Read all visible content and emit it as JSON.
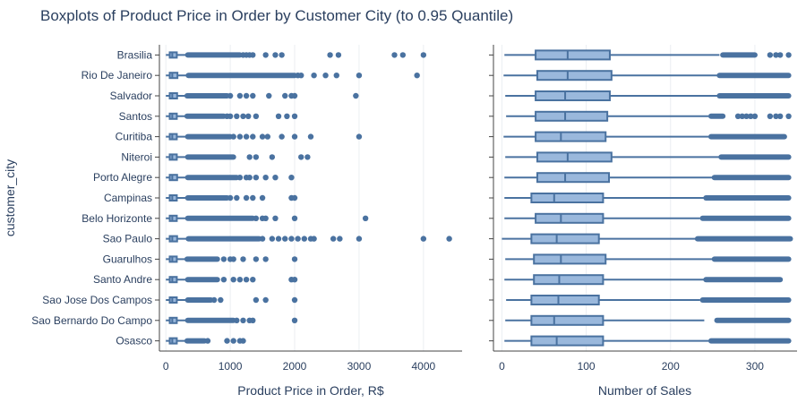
{
  "chart_data": {
    "type": "box",
    "title": "Boxplots of Product Price in Order by Customer City (to 0.95 Quantile)",
    "ylabel": "customer_city",
    "categories": [
      "Brasilia",
      "Rio De Janeiro",
      "Salvador",
      "Santos",
      "Curitiba",
      "Niteroi",
      "Porto Alegre",
      "Campinas",
      "Belo Horizonte",
      "Sao Paulo",
      "Guarulhos",
      "Santo Andre",
      "Sao Jose Dos Campos",
      "Sao Bernardo Do Campo",
      "Osasco"
    ],
    "colors": {
      "box_fill": "#9ab8dc",
      "box_line": "#4a72a0",
      "point": "#4a72a0",
      "grid": "#ebeef2"
    },
    "panels": [
      {
        "xlabel": "Product Price in Order, R$",
        "xlim": [
          -100,
          4600
        ],
        "xticks": [
          0,
          1000,
          2000,
          3000,
          4000
        ],
        "boxes": [
          {
            "q1": 60,
            "median": 100,
            "q3": 170,
            "lower": 0,
            "upper": 330,
            "outliers_dense": [
              340,
              1150
            ],
            "outliers": [
              1200,
              1250,
              1300,
              1350,
              1550,
              1700,
              1800,
              2550,
              2680,
              3550,
              3680,
              4000
            ]
          },
          {
            "q1": 60,
            "median": 100,
            "q3": 180,
            "lower": 0,
            "upper": 340,
            "outliers_dense": [
              350,
              2000
            ],
            "outliers": [
              2050,
              2100,
              2300,
              2480,
              2650,
              3000,
              3900
            ]
          },
          {
            "q1": 60,
            "median": 100,
            "q3": 175,
            "lower": 0,
            "upper": 320,
            "outliers_dense": [
              330,
              950
            ],
            "outliers": [
              1000,
              1150,
              1250,
              1350,
              1600,
              1850,
              1950,
              2000,
              2950
            ]
          },
          {
            "q1": 60,
            "median": 100,
            "q3": 170,
            "lower": 0,
            "upper": 320,
            "outliers_dense": [
              330,
              900
            ],
            "outliers": [
              950,
              1000,
              1100,
              1200,
              1280,
              1400,
              1750,
              1880,
              2000
            ]
          },
          {
            "q1": 60,
            "median": 100,
            "q3": 170,
            "lower": 0,
            "upper": 330,
            "outliers_dense": [
              340,
              1000
            ],
            "outliers": [
              1050,
              1150,
              1250,
              1350,
              1500,
              1580,
              1800,
              2000,
              2250,
              3000
            ]
          },
          {
            "q1": 60,
            "median": 100,
            "q3": 170,
            "lower": 0,
            "upper": 330,
            "outliers_dense": [
              340,
              1050
            ],
            "outliers": [
              1300,
              1400,
              1650,
              2100,
              2200
            ]
          },
          {
            "q1": 60,
            "median": 100,
            "q3": 175,
            "lower": 0,
            "upper": 330,
            "outliers_dense": [
              340,
              1100
            ],
            "outliers": [
              1150,
              1250,
              1300,
              1400,
              1550,
              1700,
              1950
            ]
          },
          {
            "q1": 60,
            "median": 100,
            "q3": 170,
            "lower": 0,
            "upper": 330,
            "outliers_dense": [
              340,
              950
            ],
            "outliers": [
              1000,
              1100,
              1250,
              1350,
              1500,
              1950,
              2000
            ]
          },
          {
            "q1": 60,
            "median": 100,
            "q3": 170,
            "lower": 0,
            "upper": 330,
            "outliers_dense": [
              340,
              1350
            ],
            "outliers": [
              1400,
              1500,
              1550,
              1700,
              2000,
              3100
            ]
          },
          {
            "q1": 60,
            "median": 100,
            "q3": 175,
            "lower": 0,
            "upper": 340,
            "outliers_dense": [
              350,
              1450
            ],
            "outliers": [
              1500,
              1650,
              1750,
              1850,
              1950,
              2050,
              2150,
              2250,
              2300,
              2600,
              2700,
              3000,
              4000,
              4400
            ]
          },
          {
            "q1": 60,
            "median": 100,
            "q3": 170,
            "lower": 0,
            "upper": 320,
            "outliers_dense": [
              330,
              800
            ],
            "outliers": [
              900,
              1000,
              1050,
              1200,
              1400,
              1550,
              2000
            ]
          },
          {
            "q1": 60,
            "median": 100,
            "q3": 170,
            "lower": 0,
            "upper": 330,
            "outliers_dense": [
              340,
              800
            ],
            "outliers": [
              900,
              1050,
              1150,
              1250,
              1350,
              1950,
              2000
            ]
          },
          {
            "q1": 60,
            "median": 100,
            "q3": 170,
            "lower": 0,
            "upper": 330,
            "outliers_dense": [
              340,
              700
            ],
            "outliers": [
              750,
              850,
              1400,
              1550,
              2000
            ]
          },
          {
            "q1": 60,
            "median": 100,
            "q3": 170,
            "lower": 0,
            "upper": 330,
            "outliers_dense": [
              340,
              1050
            ],
            "outliers": [
              1100,
              1200,
              1300,
              1350,
              2000
            ]
          },
          {
            "q1": 60,
            "median": 100,
            "q3": 170,
            "lower": 0,
            "upper": 320,
            "outliers_dense": [
              330,
              600
            ],
            "outliers": [
              650,
              950,
              1050,
              1150,
              1200
            ]
          }
        ]
      },
      {
        "xlabel": "Number of Sales",
        "xlim": [
          -10,
          350
        ],
        "xticks": [
          0,
          100,
          200,
          300
        ],
        "boxes": [
          {
            "q1": 40,
            "median": 78,
            "q3": 128,
            "lower": 3,
            "upper": 258,
            "outliers_dense": [
              262,
              300
            ],
            "outliers": [
              318,
              325,
              330,
              340
            ]
          },
          {
            "q1": 42,
            "median": 78,
            "q3": 130,
            "lower": 2,
            "upper": 255,
            "outliers_dense": [
              258,
              340
            ],
            "outliers": []
          },
          {
            "q1": 40,
            "median": 75,
            "q3": 128,
            "lower": 4,
            "upper": 255,
            "outliers_dense": [
              258,
              340
            ],
            "outliers": []
          },
          {
            "q1": 40,
            "median": 75,
            "q3": 125,
            "lower": 5,
            "upper": 245,
            "outliers_dense": [
              248,
              262
            ],
            "outliers": [
              280,
              285,
              290,
              295,
              300,
              318,
              325,
              330,
              340
            ]
          },
          {
            "q1": 40,
            "median": 70,
            "q3": 123,
            "lower": 2,
            "upper": 245,
            "outliers_dense": [
              248,
              335
            ],
            "outliers": []
          },
          {
            "q1": 42,
            "median": 78,
            "q3": 130,
            "lower": 4,
            "upper": 258,
            "outliers_dense": [
              260,
              340
            ],
            "outliers": []
          },
          {
            "q1": 42,
            "median": 75,
            "q3": 127,
            "lower": 3,
            "upper": 250,
            "outliers_dense": [
              252,
              340
            ],
            "outliers": []
          },
          {
            "q1": 35,
            "median": 62,
            "q3": 120,
            "lower": 3,
            "upper": 240,
            "outliers_dense": [
              242,
              340
            ],
            "outliers": []
          },
          {
            "q1": 40,
            "median": 70,
            "q3": 120,
            "lower": 3,
            "upper": 235,
            "outliers_dense": [
              238,
              340
            ],
            "outliers": []
          },
          {
            "q1": 35,
            "median": 65,
            "q3": 115,
            "lower": 0,
            "upper": 230,
            "outliers_dense": [
              232,
              342
            ],
            "outliers": []
          },
          {
            "q1": 38,
            "median": 70,
            "q3": 123,
            "lower": 4,
            "upper": 250,
            "outliers_dense": [
              252,
              340
            ],
            "outliers": []
          },
          {
            "q1": 38,
            "median": 68,
            "q3": 120,
            "lower": 3,
            "upper": 240,
            "outliers_dense": [
              242,
              330
            ],
            "outliers": []
          },
          {
            "q1": 35,
            "median": 67,
            "q3": 115,
            "lower": 5,
            "upper": 235,
            "outliers_dense": [
              238,
              340
            ],
            "outliers": []
          },
          {
            "q1": 35,
            "median": 62,
            "q3": 120,
            "lower": 4,
            "upper": 240,
            "outliers_dense": [
              255,
              340
            ],
            "outliers": []
          },
          {
            "q1": 35,
            "median": 65,
            "q3": 120,
            "lower": 3,
            "upper": 245,
            "outliers_dense": [
              248,
              340
            ],
            "outliers": []
          }
        ]
      }
    ]
  }
}
